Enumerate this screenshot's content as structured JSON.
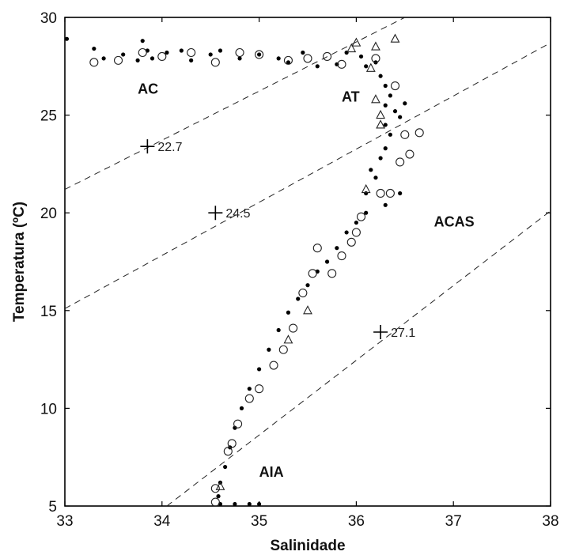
{
  "chart_data": {
    "type": "scatter",
    "xlabel": "Salinidade",
    "ylabel": "Temperatura (ºC)",
    "xlim": [
      33,
      38
    ],
    "ylim": [
      5,
      30
    ],
    "xticks": [
      "33",
      "34",
      "35",
      "36",
      "37",
      "38"
    ],
    "yticks": [
      "5",
      "10",
      "15",
      "20",
      "25",
      "30"
    ],
    "grid": false,
    "water_mass_labels": [
      {
        "text": "AC",
        "x": 33.75,
        "y": 26.1
      },
      {
        "text": "AT",
        "x": 35.85,
        "y": 25.7
      },
      {
        "text": "ACAS",
        "x": 36.8,
        "y": 19.3
      },
      {
        "text": "AIA",
        "x": 35.0,
        "y": 6.5
      }
    ],
    "isopycnals": [
      {
        "label": "22.7",
        "marker": {
          "x": 33.85,
          "y": 23.4
        },
        "line": [
          [
            33.0,
            21.2
          ],
          [
            36.5,
            30.0
          ]
        ]
      },
      {
        "label": "24.5",
        "marker": {
          "x": 34.55,
          "y": 20.0
        },
        "line": [
          [
            33.0,
            15.1
          ],
          [
            38.0,
            28.7
          ]
        ]
      },
      {
        "label": "27.1",
        "marker": {
          "x": 36.25,
          "y": 13.9
        },
        "line": [
          [
            34.05,
            5.0
          ],
          [
            38.0,
            20.1
          ]
        ]
      }
    ],
    "series": [
      {
        "marker": "dot",
        "points": [
          [
            33.02,
            28.9
          ],
          [
            33.3,
            28.4
          ],
          [
            33.4,
            27.9
          ],
          [
            33.6,
            28.1
          ],
          [
            33.75,
            27.8
          ],
          [
            33.8,
            28.8
          ],
          [
            33.85,
            28.3
          ],
          [
            33.9,
            27.9
          ],
          [
            34.05,
            28.2
          ],
          [
            34.2,
            28.3
          ],
          [
            34.3,
            27.8
          ],
          [
            34.5,
            28.1
          ],
          [
            34.6,
            28.3
          ],
          [
            34.8,
            27.9
          ],
          [
            35.0,
            28.1
          ],
          [
            35.2,
            27.9
          ],
          [
            35.3,
            27.7
          ],
          [
            35.45,
            28.2
          ],
          [
            35.6,
            27.5
          ],
          [
            35.8,
            27.6
          ],
          [
            35.9,
            28.2
          ],
          [
            36.05,
            28.0
          ],
          [
            36.1,
            27.5
          ],
          [
            36.2,
            27.7
          ],
          [
            36.25,
            27.0
          ],
          [
            36.3,
            26.5
          ],
          [
            36.35,
            26.0
          ],
          [
            36.3,
            25.5
          ],
          [
            36.4,
            25.2
          ],
          [
            36.45,
            24.9
          ],
          [
            36.3,
            24.5
          ],
          [
            36.35,
            24.0
          ],
          [
            36.5,
            25.6
          ],
          [
            36.3,
            23.3
          ],
          [
            36.25,
            22.8
          ],
          [
            36.15,
            22.2
          ],
          [
            36.2,
            21.8
          ],
          [
            36.1,
            21.0
          ],
          [
            36.45,
            21.0
          ],
          [
            36.3,
            20.4
          ],
          [
            36.1,
            20.0
          ],
          [
            36.0,
            19.5
          ],
          [
            35.9,
            19.0
          ],
          [
            35.8,
            18.2
          ],
          [
            35.7,
            17.5
          ],
          [
            35.6,
            17.0
          ],
          [
            35.5,
            16.3
          ],
          [
            35.4,
            15.6
          ],
          [
            35.3,
            14.9
          ],
          [
            35.2,
            14.0
          ],
          [
            35.1,
            13.0
          ],
          [
            35.0,
            12.0
          ],
          [
            34.9,
            11.0
          ],
          [
            34.82,
            10.0
          ],
          [
            34.75,
            9.0
          ],
          [
            34.7,
            8.0
          ],
          [
            34.65,
            7.0
          ],
          [
            34.6,
            6.2
          ],
          [
            34.58,
            5.5
          ],
          [
            34.6,
            5.1
          ],
          [
            34.75,
            5.1
          ],
          [
            34.9,
            5.1
          ],
          [
            35.0,
            5.1
          ]
        ]
      },
      {
        "marker": "circle",
        "points": [
          [
            33.3,
            27.7
          ],
          [
            33.55,
            27.8
          ],
          [
            33.8,
            28.2
          ],
          [
            34.0,
            28.0
          ],
          [
            34.3,
            28.2
          ],
          [
            34.55,
            27.7
          ],
          [
            34.8,
            28.2
          ],
          [
            35.0,
            28.1
          ],
          [
            35.3,
            27.8
          ],
          [
            35.5,
            27.9
          ],
          [
            35.7,
            28.0
          ],
          [
            35.85,
            27.6
          ],
          [
            36.2,
            27.9
          ],
          [
            36.4,
            26.5
          ],
          [
            36.5,
            24.0
          ],
          [
            36.55,
            23.0
          ],
          [
            36.45,
            22.6
          ],
          [
            36.65,
            24.1
          ],
          [
            36.35,
            21.0
          ],
          [
            36.25,
            21.0
          ],
          [
            36.05,
            19.8
          ],
          [
            36.0,
            19.0
          ],
          [
            35.95,
            18.5
          ],
          [
            35.6,
            18.2
          ],
          [
            35.85,
            17.8
          ],
          [
            35.75,
            16.9
          ],
          [
            35.55,
            16.9
          ],
          [
            35.45,
            15.9
          ],
          [
            35.35,
            14.1
          ],
          [
            35.25,
            13.0
          ],
          [
            35.15,
            12.2
          ],
          [
            35.0,
            11.0
          ],
          [
            34.9,
            10.5
          ],
          [
            34.78,
            9.2
          ],
          [
            34.72,
            8.2
          ],
          [
            34.68,
            7.8
          ],
          [
            34.55,
            5.9
          ],
          [
            34.55,
            5.2
          ]
        ]
      },
      {
        "marker": "triangle",
        "points": [
          [
            35.95,
            28.4
          ],
          [
            36.0,
            28.7
          ],
          [
            36.2,
            28.5
          ],
          [
            36.4,
            28.9
          ],
          [
            36.15,
            27.4
          ],
          [
            36.2,
            25.8
          ],
          [
            36.25,
            25.0
          ],
          [
            36.25,
            24.5
          ],
          [
            36.1,
            21.2
          ],
          [
            35.5,
            15.0
          ],
          [
            35.3,
            13.5
          ],
          [
            34.6,
            6.0
          ]
        ]
      }
    ]
  }
}
